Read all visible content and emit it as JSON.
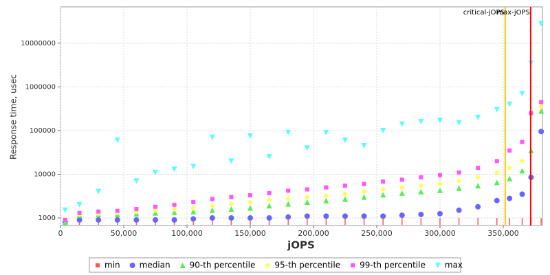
{
  "chart_data": {
    "type": "scatter",
    "x_label": "jOPS",
    "y_label": "Response time, usec",
    "log_y": true,
    "grid": true,
    "xlim": [
      0,
      381000
    ],
    "ylim": [
      671,
      68000000
    ],
    "xticks": [
      0,
      {
        "value": 50000,
        "label": "50,000"
      },
      {
        "value": 100000,
        "label": "100,000"
      },
      {
        "value": 150000,
        "label": "150,000"
      },
      {
        "value": 200000,
        "label": "200,000"
      },
      {
        "value": 250000,
        "label": "250,000"
      },
      {
        "value": 300000,
        "label": "300,000"
      },
      {
        "value": 350000,
        "label": "350,000"
      }
    ],
    "yticks": [
      1000,
      10000,
      100000,
      1000000,
      10000000
    ],
    "x": [
      3700,
      15000,
      30000,
      45000,
      60000,
      75000,
      90000,
      105000,
      120000,
      135000,
      150000,
      165000,
      180000,
      195000,
      210000,
      225000,
      240000,
      255000,
      270000,
      285000,
      300000,
      315000,
      330000,
      345000,
      355000,
      365000,
      372000,
      380000
    ],
    "series": [
      {
        "name": "min",
        "color": "#ff5555",
        "marker": "tick",
        "values": [
          1000,
          1000,
          1000,
          1000,
          1000,
          1000,
          1000,
          1000,
          1000,
          1000,
          1000,
          1000,
          1000,
          1000,
          1000,
          1000,
          1000,
          1000,
          1000,
          1000,
          1000,
          1000,
          1000,
          1000,
          1000,
          1000,
          1000,
          1000
        ]
      },
      {
        "name": "median",
        "color": "#6666ff",
        "marker": "circle",
        "values": [
          800,
          900,
          900,
          900,
          900,
          900,
          900,
          950,
          1000,
          1000,
          1000,
          1000,
          1050,
          1100,
          1100,
          1100,
          1100,
          1100,
          1150,
          1200,
          1250,
          1500,
          1800,
          2500,
          2800,
          3500,
          8500,
          95000
        ]
      },
      {
        "name": "90-th percentile",
        "color": "#55ee55",
        "marker": "triangle",
        "values": [
          800,
          1150,
          1200,
          1200,
          1250,
          1300,
          1350,
          1400,
          1500,
          1600,
          1700,
          1900,
          2100,
          2300,
          2500,
          2700,
          3000,
          3400,
          3700,
          4000,
          4300,
          4800,
          5500,
          6500,
          8000,
          12000,
          35000,
          280000
        ]
      },
      {
        "name": "95-th percentile",
        "color": "#ffff55",
        "marker": "diamond",
        "values": [
          900,
          1200,
          1250,
          1300,
          1400,
          1500,
          1600,
          1700,
          1900,
          2100,
          2300,
          2600,
          2800,
          3000,
          3200,
          3500,
          4000,
          4500,
          5000,
          5500,
          6000,
          7000,
          8500,
          11000,
          14000,
          20000,
          250000,
          350000
        ]
      },
      {
        "name": "99-th percentile",
        "color": "#ff55ff",
        "marker": "square",
        "values": [
          900,
          1300,
          1400,
          1450,
          1600,
          1800,
          2000,
          2300,
          2700,
          3000,
          3300,
          3700,
          4200,
          4500,
          5000,
          5500,
          6000,
          6800,
          7500,
          8500,
          9500,
          11000,
          14000,
          20000,
          35000,
          55000,
          250000,
          450000
        ]
      },
      {
        "name": "max",
        "color": "#55ffff",
        "marker": "down",
        "values": [
          1500,
          2000,
          4000,
          60000,
          7000,
          11000,
          13000,
          15000,
          70000,
          20000,
          75000,
          25000,
          90000,
          40000,
          90000,
          60000,
          45000,
          100000,
          140000,
          160000,
          170000,
          150000,
          200000,
          300000,
          400000,
          700000,
          3500000,
          28000000
        ]
      }
    ],
    "vlines": [
      {
        "label": "critical-jOPS",
        "x": 351600,
        "color": "#ffcc00"
      },
      {
        "label": "max-jOPS",
        "x": 371700,
        "color": "#ff0000"
      }
    ]
  }
}
